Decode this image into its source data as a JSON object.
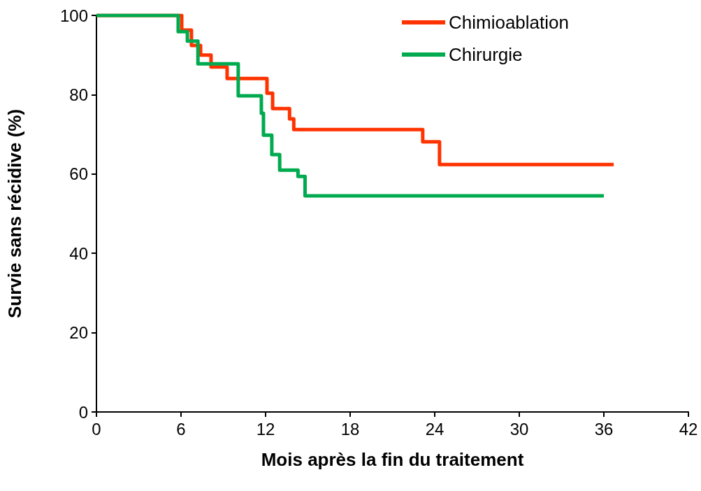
{
  "chart_data": {
    "type": "step",
    "xlabel": "Mois après la fin du traitement",
    "ylabel": "Survie sans récidive (%)",
    "xlim": [
      0,
      42
    ],
    "xticks": [
      0,
      6,
      12,
      18,
      24,
      30,
      36,
      42
    ],
    "ylim": [
      0,
      100
    ],
    "yticks": [
      0,
      20,
      40,
      60,
      80,
      100
    ],
    "grid": false,
    "legend": "top right",
    "marker": "none",
    "line_style": "solid",
    "series": [
      {
        "name": "Chimioablation",
        "color": "#ff3300",
        "x": [
          0,
          6.05,
          6.74,
          7.39,
          8.13,
          9.27,
          12.1,
          12.5,
          13.7,
          14.0,
          23.15,
          24.34,
          36.7
        ],
        "values": [
          100,
          96.3,
          92.4,
          90,
          87,
          84.1,
          80.4,
          76.5,
          73.9,
          71.2,
          68.1,
          62.4,
          62.4
        ]
      },
      {
        "name": "Chirurgie",
        "color": "#00aa4f",
        "x": [
          0,
          5.8,
          6.45,
          7.2,
          10.06,
          11.7,
          11.85,
          12.44,
          13.0,
          14.3,
          14.8,
          36.0
        ],
        "values": [
          100,
          95.9,
          93.5,
          87.8,
          79.7,
          75.3,
          69.8,
          64.9,
          61.0,
          59.4,
          54.5,
          54.5
        ]
      }
    ]
  }
}
